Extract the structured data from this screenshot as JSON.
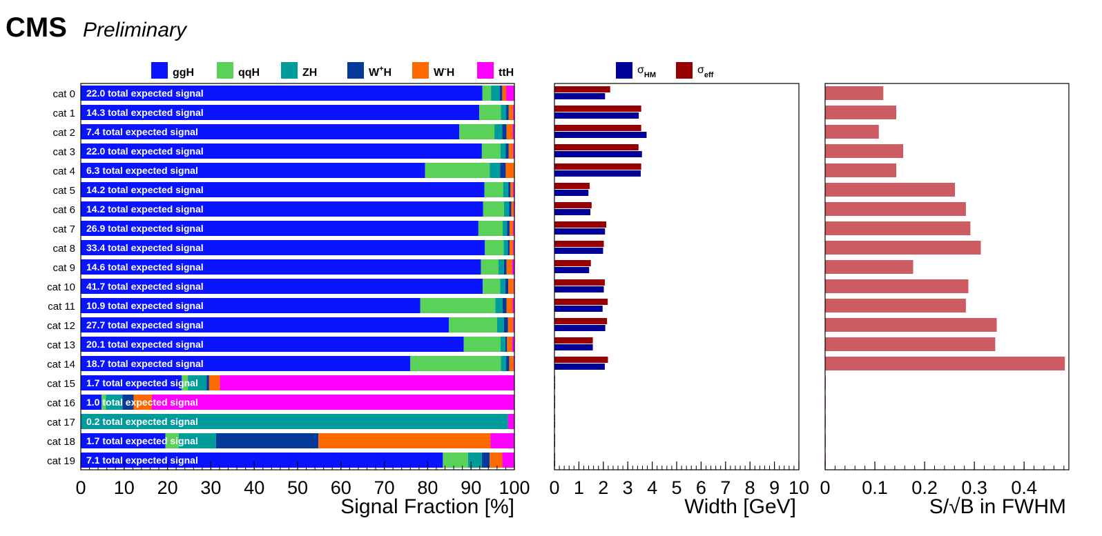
{
  "header": {
    "experiment": "CMS",
    "status": "Preliminary"
  },
  "colors": {
    "ggH": "#0a14ff",
    "qqH": "#5ad25a",
    "ZH": "#009b9b",
    "WplusH": "#063a9a",
    "WminusH": "#ff6a00",
    "ttH": "#ff00ff",
    "sigma_HM": "#000096",
    "sigma_eff": "#960000",
    "sovb": "#cc5c62"
  },
  "chart_data": [
    {
      "type": "bar",
      "orientation": "horizontal",
      "stacked": true,
      "title": "",
      "xlabel": "Signal Fraction [%]",
      "ylabel": "",
      "xlim": [
        0,
        100
      ],
      "xticks": [
        "0",
        "10",
        "20",
        "30",
        "40",
        "50",
        "60",
        "70",
        "80",
        "90",
        "100"
      ],
      "legend_position": "top",
      "categories": [
        "cat 0",
        "cat 1",
        "cat 2",
        "cat 3",
        "cat 4",
        "cat 5",
        "cat 6",
        "cat 7",
        "cat 8",
        "cat 9",
        "cat 10",
        "cat 11",
        "cat 12",
        "cat 13",
        "cat 14",
        "cat 15",
        "cat 16",
        "cat 17",
        "cat 18",
        "cat 19"
      ],
      "annotations": [
        "22.0 total expected signal",
        "14.3 total expected signal",
        "7.4 total expected signal",
        "22.0 total expected signal",
        "6.3 total expected signal",
        "14.2 total expected signal",
        "14.2 total expected signal",
        "26.9 total expected signal",
        "33.4 total expected signal",
        "14.6 total expected signal",
        "41.7 total expected signal",
        "10.9 total expected signal",
        "27.7 total expected signal",
        "20.1 total expected signal",
        "18.7 total expected signal",
        "1.7 total expected signal",
        "1.0 total expected signal",
        "0.2 total expected signal",
        "1.7 total expected signal",
        "7.1 total expected signal"
      ],
      "series": [
        {
          "name": "ggH",
          "label_main": "ggH",
          "label_sup": "",
          "values": [
            92.6,
            91.9,
            87.3,
            92.5,
            79.4,
            93.1,
            92.8,
            91.7,
            93.2,
            92.3,
            92.7,
            78.3,
            84.9,
            88.3,
            76.0,
            23.3,
            4.8,
            0.0,
            19.5,
            83.5
          ]
        },
        {
          "name": "qqH",
          "label_main": "qqH",
          "label_sup": "",
          "values": [
            2.0,
            5.0,
            8.1,
            4.3,
            14.9,
            4.3,
            4.8,
            5.6,
            4.3,
            4.0,
            4.0,
            17.3,
            11.1,
            8.5,
            20.9,
            1.4,
            1.0,
            0.0,
            3.1,
            5.8
          ]
        },
        {
          "name": "ZH",
          "label_main": "ZH",
          "label_sup": "",
          "values": [
            2.0,
            1.2,
            1.8,
            1.2,
            2.4,
            1.2,
            1.2,
            1.0,
            1.0,
            1.3,
            1.2,
            1.7,
            1.6,
            1.1,
            1.2,
            4.3,
            3.8,
            98.5,
            8.6,
            3.2
          ]
        },
        {
          "name": "W+H",
          "label_main": "W",
          "label_sup": "+",
          "values": [
            0.6,
            0.6,
            1.0,
            0.7,
            1.3,
            0.5,
            0.5,
            0.6,
            0.4,
            0.6,
            0.7,
            0.9,
            0.9,
            0.4,
            0.7,
            0.6,
            2.6,
            0.0,
            23.6,
            1.8
          ]
        },
        {
          "name": "W-H",
          "label_main": "W",
          "label_sup": "-",
          "values": [
            0.9,
            1.0,
            1.4,
            1.0,
            2.0,
            0.6,
            0.5,
            0.8,
            0.8,
            1.3,
            1.2,
            1.4,
            1.2,
            1.2,
            1.0,
            2.5,
            4.2,
            0.0,
            39.7,
            2.9
          ]
        },
        {
          "name": "ttH",
          "label_main": "ttH",
          "label_sup": "",
          "values": [
            1.9,
            0.3,
            0.4,
            0.3,
            0.0,
            0.3,
            0.2,
            0.3,
            0.3,
            0.5,
            0.2,
            0.4,
            0.3,
            0.5,
            0.2,
            67.9,
            83.6,
            1.5,
            5.5,
            2.8
          ]
        }
      ]
    },
    {
      "type": "bar",
      "orientation": "horizontal",
      "title": "",
      "xlabel": "Width [GeV]",
      "ylabel": "",
      "xlim": [
        0,
        10
      ],
      "xticks": [
        "0",
        "1",
        "2",
        "3",
        "4",
        "5",
        "6",
        "7",
        "8",
        "9",
        "10"
      ],
      "legend_position": "top",
      "categories": [
        "cat 0",
        "cat 1",
        "cat 2",
        "cat 3",
        "cat 4",
        "cat 5",
        "cat 6",
        "cat 7",
        "cat 8",
        "cat 9",
        "cat 10",
        "cat 11",
        "cat 12",
        "cat 13",
        "cat 14",
        "cat 15",
        "cat 16",
        "cat 17",
        "cat 18",
        "cat 19"
      ],
      "series": [
        {
          "name": "σHM",
          "label_main": "σ",
          "label_sub": "HM",
          "values": [
            2.07,
            3.45,
            3.77,
            3.58,
            3.53,
            1.39,
            1.47,
            2.07,
            1.99,
            1.42,
            2.02,
            1.97,
            2.08,
            1.57,
            2.06,
            0,
            0,
            0,
            0,
            0
          ]
        },
        {
          "name": "σeff",
          "label_main": "σ",
          "label_sub": "eff",
          "values": [
            2.28,
            3.55,
            3.55,
            3.44,
            3.55,
            1.44,
            1.52,
            2.12,
            2.02,
            1.49,
            2.06,
            2.18,
            2.15,
            1.57,
            2.19,
            0,
            0,
            0,
            0,
            0
          ]
        }
      ]
    },
    {
      "type": "bar",
      "orientation": "horizontal",
      "title": "",
      "xlabel": "S/√B in FWHM",
      "ylabel": "",
      "xlim": [
        0,
        0.49
      ],
      "xticks": [
        "0",
        "0.1",
        "0.2",
        "0.3",
        "0.4"
      ],
      "categories": [
        "cat 0",
        "cat 1",
        "cat 2",
        "cat 3",
        "cat 4",
        "cat 5",
        "cat 6",
        "cat 7",
        "cat 8",
        "cat 9",
        "cat 10",
        "cat 11",
        "cat 12",
        "cat 13",
        "cat 14",
        "cat 15",
        "cat 16",
        "cat 17",
        "cat 18",
        "cat 19"
      ],
      "series": [
        {
          "name": "S/√B",
          "values": [
            0.117,
            0.143,
            0.108,
            0.157,
            0.143,
            0.261,
            0.283,
            0.292,
            0.313,
            0.177,
            0.288,
            0.283,
            0.345,
            0.342,
            0.482,
            0.001,
            0.001,
            0.001,
            0.001,
            0.001
          ]
        }
      ]
    }
  ]
}
